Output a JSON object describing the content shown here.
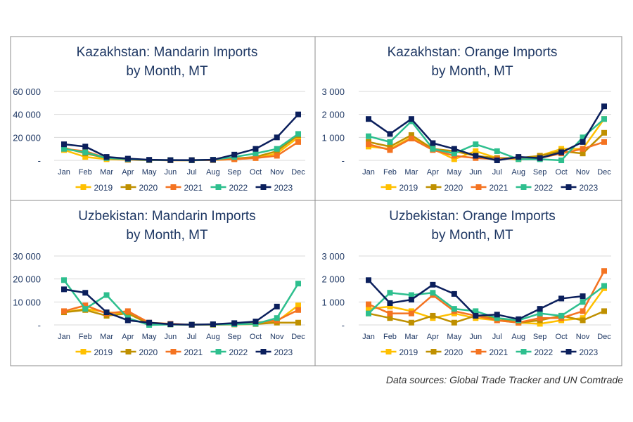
{
  "months": [
    "Jan",
    "Feb",
    "Mar",
    "Apr",
    "May",
    "Jun",
    "Jul",
    "Aug",
    "Sep",
    "Oct",
    "Nov",
    "Dec"
  ],
  "series_colors": {
    "2019": "#FFC000",
    "2020": "#BF9000",
    "2021": "#F47321",
    "2022": "#2EBF8E",
    "2023": "#0B1F5C"
  },
  "footnote": "Data sources: Global Trade Tracker and UN Comtrade",
  "chart_data": [
    {
      "type": "line",
      "title": "Kazakhstan: Mandarin Imports by Month, MT",
      "title_lines": [
        "Kazakhstan: Mandarin Imports",
        "by Month, MT"
      ],
      "categories": [
        "Jan",
        "Feb",
        "Mar",
        "Apr",
        "May",
        "Jun",
        "Jul",
        "Aug",
        "Sep",
        "Oct",
        "Nov",
        "Dec"
      ],
      "ylim": [
        0,
        60000
      ],
      "yticks": [
        0,
        20000,
        40000,
        60000
      ],
      "ytick_labels": [
        "-",
        "20 000",
        "40 000",
        "60 000"
      ],
      "legend_position": "bottom",
      "series": [
        {
          "name": "2019",
          "values": [
            9000,
            3000,
            1000,
            500,
            200,
            100,
            100,
            200,
            1000,
            2000,
            6000,
            20000
          ]
        },
        {
          "name": "2020",
          "values": [
            11000,
            6000,
            2000,
            600,
            300,
            100,
            100,
            300,
            1500,
            3000,
            8000,
            22000
          ]
        },
        {
          "name": "2021",
          "values": [
            10000,
            8000,
            2000,
            500,
            200,
            100,
            100,
            300,
            1000,
            2000,
            4000,
            16000
          ]
        },
        {
          "name": "2022",
          "values": [
            10000,
            7000,
            2000,
            1000,
            300,
            200,
            100,
            500,
            3000,
            6000,
            10000,
            23000
          ]
        },
        {
          "name": "2023",
          "values": [
            14000,
            12000,
            3000,
            1500,
            500,
            200,
            200,
            500,
            5000,
            10000,
            20000,
            40000
          ]
        }
      ]
    },
    {
      "type": "line",
      "title": "Kazakhstan: Orange Imports by Month, MT",
      "title_lines": [
        "Kazakhstan: Orange Imports",
        "by Month, MT"
      ],
      "categories": [
        "Jan",
        "Feb",
        "Mar",
        "Apr",
        "May",
        "Jun",
        "Jul",
        "Aug",
        "Sep",
        "Oct",
        "Nov",
        "Dec"
      ],
      "ylim": [
        0,
        3000
      ],
      "yticks": [
        0,
        1000,
        2000,
        3000
      ],
      "ytick_labels": [
        "-",
        "1 000",
        "2 000",
        "3 000"
      ],
      "legend_position": "bottom",
      "series": [
        {
          "name": "2019",
          "values": [
            600,
            500,
            1000,
            500,
            50,
            400,
            100,
            50,
            200,
            500,
            500,
            1800
          ]
        },
        {
          "name": "2020",
          "values": [
            800,
            600,
            1100,
            500,
            400,
            200,
            100,
            100,
            200,
            400,
            300,
            1200
          ]
        },
        {
          "name": "2021",
          "values": [
            700,
            450,
            950,
            450,
            200,
            100,
            50,
            100,
            100,
            300,
            500,
            800
          ]
        },
        {
          "name": "2022",
          "values": [
            1050,
            800,
            1700,
            500,
            300,
            700,
            400,
            50,
            50,
            0,
            1000,
            1800
          ]
        },
        {
          "name": "2023",
          "values": [
            1800,
            1150,
            1800,
            750,
            500,
            200,
            0,
            150,
            100,
            350,
            800,
            2350
          ]
        }
      ]
    },
    {
      "type": "line",
      "title": "Uzbekistan: Mandarin Imports by Month, MT",
      "title_lines": [
        "Uzbekistan: Mandarin Imports",
        "by Month, MT"
      ],
      "categories": [
        "Jan",
        "Feb",
        "Mar",
        "Apr",
        "May",
        "Jun",
        "Jul",
        "Aug",
        "Sep",
        "Oct",
        "Nov",
        "Dec"
      ],
      "ylim": [
        0,
        30000
      ],
      "yticks": [
        0,
        10000,
        20000,
        30000
      ],
      "ytick_labels": [
        "-",
        "10 000",
        "20 000",
        "30 000"
      ],
      "legend_position": "bottom",
      "series": [
        {
          "name": "2019",
          "values": [
            5500,
            7000,
            5500,
            5000,
            500,
            200,
            100,
            100,
            300,
            500,
            1500,
            8500
          ]
        },
        {
          "name": "2020",
          "values": [
            5500,
            6500,
            4000,
            5000,
            500,
            300,
            100,
            100,
            200,
            400,
            1000,
            1000
          ]
        },
        {
          "name": "2021",
          "values": [
            6000,
            8500,
            5000,
            6000,
            1000,
            500,
            100,
            200,
            400,
            1000,
            2000,
            6500
          ]
        },
        {
          "name": "2022",
          "values": [
            19500,
            7000,
            13000,
            3000,
            0,
            200,
            100,
            200,
            300,
            500,
            3000,
            18000
          ]
        },
        {
          "name": "2023",
          "values": [
            15500,
            14000,
            5500,
            2000,
            1000,
            300,
            100,
            300,
            800,
            1500,
            8000,
            null
          ]
        }
      ]
    },
    {
      "type": "line",
      "title": "Uzbekistan: Orange Imports by Month, MT",
      "title_lines": [
        "Uzbekistan: Orange Imports",
        "by Month, MT"
      ],
      "categories": [
        "Jan",
        "Feb",
        "Mar",
        "Apr",
        "May",
        "Jun",
        "Jul",
        "Aug",
        "Sep",
        "Oct",
        "Nov",
        "Dec"
      ],
      "ylim": [
        0,
        3000
      ],
      "yticks": [
        0,
        1000,
        2000,
        3000
      ],
      "ytick_labels": [
        "-",
        "1 000",
        "2 000",
        "3 000"
      ],
      "legend_position": "bottom",
      "series": [
        {
          "name": "2019",
          "values": [
            700,
            800,
            600,
            300,
            500,
            300,
            200,
            100,
            50,
            200,
            300,
            1600
          ]
        },
        {
          "name": "2020",
          "values": [
            500,
            300,
            100,
            400,
            100,
            400,
            300,
            100,
            200,
            400,
            200,
            600
          ]
        },
        {
          "name": "2021",
          "values": [
            900,
            500,
            500,
            1300,
            600,
            400,
            200,
            100,
            300,
            300,
            600,
            2350
          ]
        },
        {
          "name": "2022",
          "values": [
            500,
            1400,
            1300,
            1400,
            700,
            600,
            300,
            200,
            500,
            400,
            1000,
            1700
          ]
        },
        {
          "name": "2023",
          "values": [
            1950,
            950,
            1100,
            1750,
            1350,
            400,
            450,
            250,
            700,
            1150,
            1250,
            null
          ]
        }
      ]
    }
  ]
}
